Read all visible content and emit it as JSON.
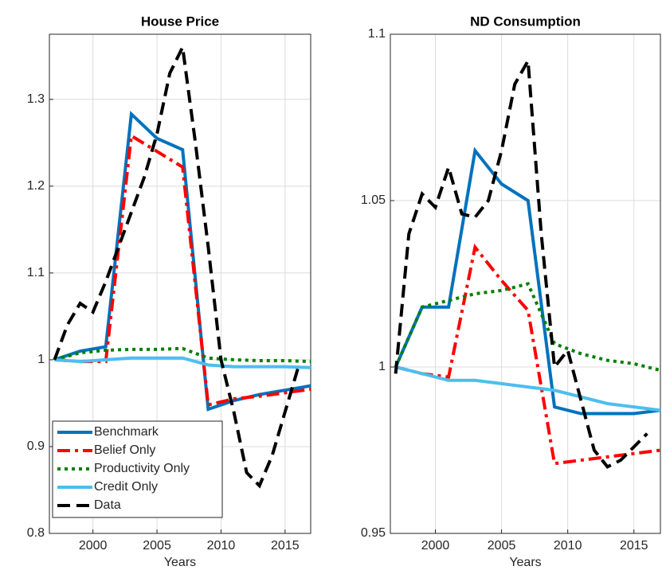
{
  "chart_data": [
    {
      "type": "line",
      "title": "House Price",
      "xlabel": "Years",
      "xlim": [
        1996.6,
        2017
      ],
      "xticks": [
        2000,
        2005,
        2010,
        2015
      ],
      "ylim": [
        0.8,
        1.375
      ],
      "yticks": [
        0.8,
        0.9,
        1,
        1.1,
        1.2,
        1.3
      ],
      "grid": true,
      "legend": "lower left",
      "series": [
        {
          "name": "Benchmark",
          "color": "#0072bd",
          "dash": "solid",
          "x": [
            1997,
            1999,
            2001,
            2003,
            2005,
            2007,
            2009,
            2011,
            2013,
            2015,
            2017
          ],
          "values": [
            1.0,
            1.01,
            1.015,
            1.283,
            1.255,
            1.242,
            0.943,
            0.953,
            0.96,
            0.965,
            0.97
          ]
        },
        {
          "name": "Belief Only",
          "color": "#ff0000",
          "dash": "dashdot",
          "x": [
            1997,
            1999,
            2001,
            2003,
            2005,
            2007,
            2009,
            2011,
            2013,
            2015,
            2017
          ],
          "values": [
            1.0,
            0.998,
            0.998,
            1.258,
            1.24,
            1.222,
            0.948,
            0.955,
            0.958,
            0.962,
            0.966
          ]
        },
        {
          "name": "Productivity Only",
          "color": "#007f00",
          "dash": "dotted",
          "x": [
            1997,
            1999,
            2001,
            2003,
            2005,
            2007,
            2009,
            2011,
            2013,
            2015,
            2017
          ],
          "values": [
            1.0,
            1.008,
            1.011,
            1.012,
            1.012,
            1.013,
            1.002,
            1.0,
            0.999,
            0.999,
            0.998
          ]
        },
        {
          "name": "Credit Only",
          "color": "#4dbeee",
          "dash": "solid",
          "x": [
            1997,
            1999,
            2001,
            2003,
            2005,
            2007,
            2009,
            2011,
            2013,
            2015,
            2017
          ],
          "values": [
            1.0,
            0.998,
            1.0,
            1.002,
            1.002,
            1.002,
            0.994,
            0.992,
            0.992,
            0.992,
            0.991
          ]
        },
        {
          "name": "Data",
          "color": "#000000",
          "dash": "dashed",
          "x": [
            1997,
            1998,
            1999,
            2000,
            2001,
            2002,
            2003,
            2004,
            2005,
            2006,
            2007,
            2008,
            2009,
            2010,
            2011,
            2012,
            2013,
            2014,
            2015,
            2016
          ],
          "values": [
            1.0,
            1.04,
            1.065,
            1.055,
            1.09,
            1.13,
            1.17,
            1.21,
            1.26,
            1.33,
            1.36,
            1.25,
            1.13,
            1.0,
            0.94,
            0.87,
            0.855,
            0.89,
            0.94,
            0.99
          ]
        }
      ]
    },
    {
      "type": "line",
      "title": "ND Consumption",
      "xlabel": "Years",
      "xlim": [
        1996.6,
        2017
      ],
      "xticks": [
        2000,
        2005,
        2010,
        2015
      ],
      "ylim": [
        0.95,
        1.1
      ],
      "yticks": [
        0.95,
        1,
        1.05,
        1.1
      ],
      "grid": true,
      "series": [
        {
          "color": "#0072bd",
          "dash": "solid",
          "x": [
            1997,
            1999,
            2001,
            2003,
            2005,
            2007,
            2009,
            2011,
            2013,
            2015,
            2017
          ],
          "values": [
            1.0,
            1.018,
            1.018,
            1.065,
            1.055,
            1.05,
            0.988,
            0.986,
            0.986,
            0.986,
            0.987
          ]
        },
        {
          "color": "#ff0000",
          "dash": "dashdot",
          "x": [
            1997,
            1999,
            2001,
            2003,
            2005,
            2007,
            2009,
            2011,
            2013,
            2015,
            2017
          ],
          "values": [
            1.0,
            0.998,
            0.997,
            1.036,
            1.026,
            1.017,
            0.971,
            0.972,
            0.973,
            0.974,
            0.975
          ]
        },
        {
          "color": "#007f00",
          "dash": "dotted",
          "x": [
            1997,
            1999,
            2001,
            2003,
            2005,
            2007,
            2009,
            2011,
            2013,
            2015,
            2017
          ],
          "values": [
            1.0,
            1.018,
            1.02,
            1.022,
            1.023,
            1.025,
            1.007,
            1.004,
            1.002,
            1.001,
            0.999
          ]
        },
        {
          "color": "#4dbeee",
          "dash": "solid",
          "x": [
            1997,
            1999,
            2001,
            2003,
            2005,
            2007,
            2009,
            2011,
            2013,
            2015,
            2017
          ],
          "values": [
            1.0,
            0.998,
            0.996,
            0.996,
            0.995,
            0.994,
            0.993,
            0.991,
            0.989,
            0.988,
            0.987
          ]
        },
        {
          "color": "#000000",
          "dash": "dashed",
          "x": [
            1997,
            1998,
            1999,
            2000,
            2001,
            2002,
            2003,
            2004,
            2005,
            2006,
            2007,
            2008,
            2009,
            2010,
            2011,
            2012,
            2013,
            2014,
            2015,
            2016
          ],
          "values": [
            0.998,
            1.04,
            1.052,
            1.048,
            1.06,
            1.046,
            1.045,
            1.05,
            1.065,
            1.085,
            1.092,
            1.04,
            1.0,
            1.005,
            0.99,
            0.975,
            0.97,
            0.972,
            0.976,
            0.98
          ]
        }
      ]
    }
  ]
}
